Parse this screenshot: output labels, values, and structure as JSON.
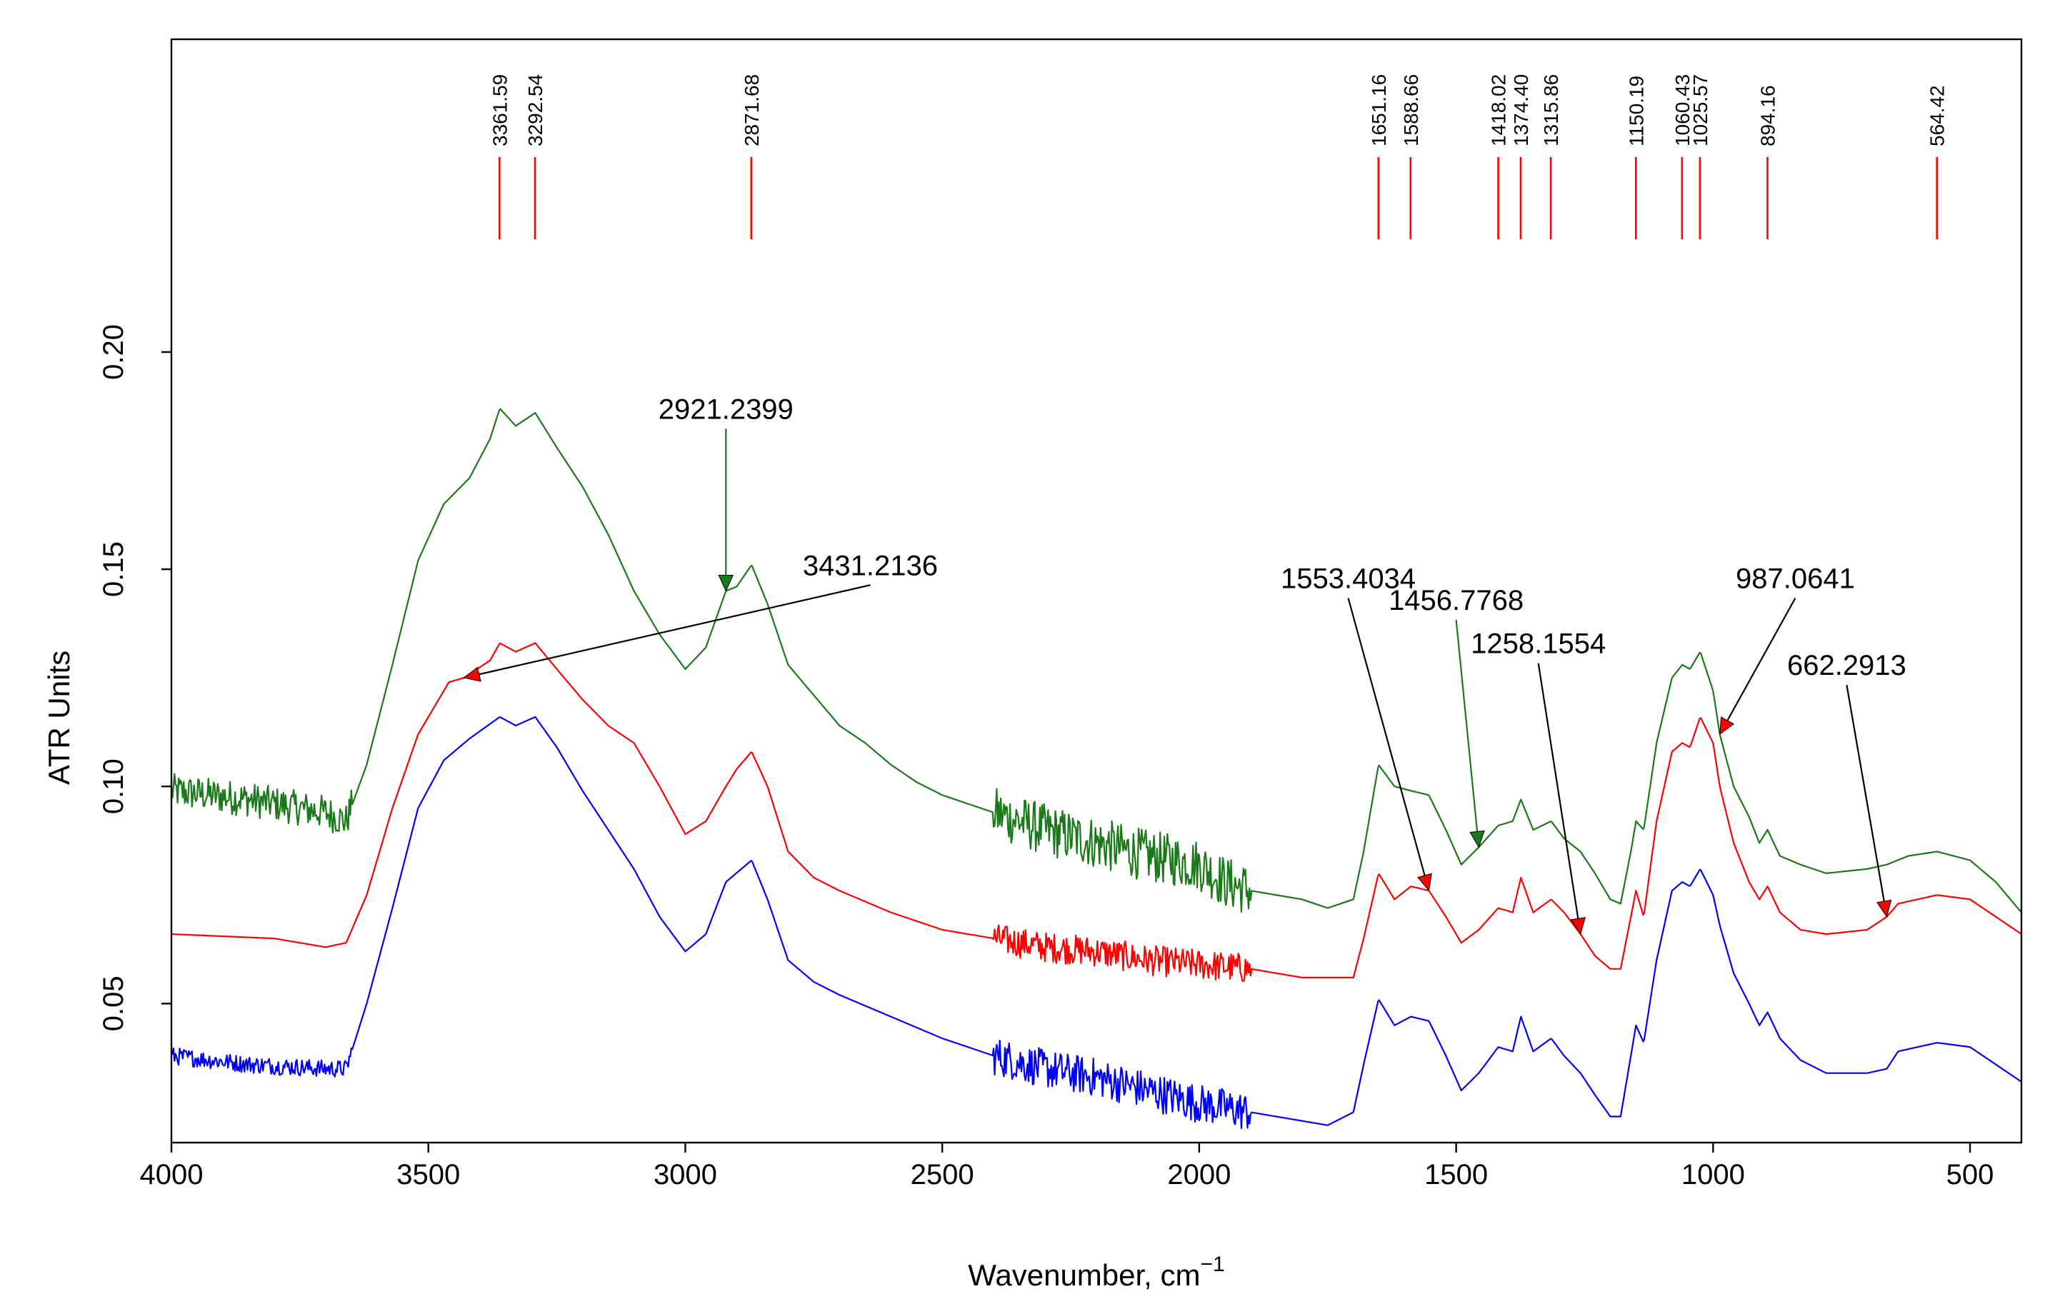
{
  "chart_data": {
    "type": "line",
    "title": "",
    "xlabel": "Wavenumber, cm",
    "xlabel_sup": "−1",
    "ylabel": "ATR Units",
    "xlim": [
      4000,
      400
    ],
    "ylim": [
      0.018,
      0.272
    ],
    "x_ticks": [
      4000,
      3500,
      3000,
      2500,
      2000,
      1500,
      1000,
      500
    ],
    "x_tick_labels": [
      "4000",
      "3500",
      "3000",
      "2500",
      "2000",
      "1500",
      "1000",
      "500"
    ],
    "y_ticks": [
      0.05,
      0.1,
      0.15,
      0.2
    ],
    "y_tick_labels": [
      "0.05",
      "0.10",
      "0.15",
      "0.20"
    ],
    "peak_markers": {
      "color": "#ff0000",
      "items": [
        {
          "x": 3361.59,
          "label": "3361.59"
        },
        {
          "x": 3292.54,
          "label": "3292.54"
        },
        {
          "x": 2871.68,
          "label": "2871.68"
        },
        {
          "x": 1651.16,
          "label": "1651.16"
        },
        {
          "x": 1588.66,
          "label": "1588.66"
        },
        {
          "x": 1418.02,
          "label": "1418.02"
        },
        {
          "x": 1374.4,
          "label": "1374.40"
        },
        {
          "x": 1315.86,
          "label": "1315.86"
        },
        {
          "x": 1150.19,
          "label": "1150.19"
        },
        {
          "x": 1060.43,
          "label": "1060.43"
        },
        {
          "x": 1025.57,
          "label": "1025.57"
        },
        {
          "x": 894.16,
          "label": "894.16"
        },
        {
          "x": 564.42,
          "label": "564.42"
        }
      ]
    },
    "series": [
      {
        "name": "green spectrum",
        "color": "#1a7a1a",
        "noise": [
          [
            4000,
            3650,
            0.004
          ],
          [
            2400,
            1900,
            0.006
          ]
        ],
        "points": [
          [
            4000,
            0.099
          ],
          [
            3850,
            0.097
          ],
          [
            3700,
            0.094
          ],
          [
            3660,
            0.092
          ],
          [
            3620,
            0.105
          ],
          [
            3570,
            0.128
          ],
          [
            3520,
            0.152
          ],
          [
            3470,
            0.165
          ],
          [
            3420,
            0.171
          ],
          [
            3380,
            0.18
          ],
          [
            3361,
            0.187
          ],
          [
            3330,
            0.183
          ],
          [
            3292,
            0.186
          ],
          [
            3250,
            0.178
          ],
          [
            3200,
            0.169
          ],
          [
            3150,
            0.158
          ],
          [
            3100,
            0.145
          ],
          [
            3050,
            0.135
          ],
          [
            3000,
            0.127
          ],
          [
            2960,
            0.132
          ],
          [
            2921,
            0.145
          ],
          [
            2900,
            0.146
          ],
          [
            2871,
            0.151
          ],
          [
            2840,
            0.142
          ],
          [
            2800,
            0.128
          ],
          [
            2750,
            0.121
          ],
          [
            2700,
            0.114
          ],
          [
            2650,
            0.11
          ],
          [
            2600,
            0.105
          ],
          [
            2550,
            0.101
          ],
          [
            2500,
            0.098
          ],
          [
            2400,
            0.094
          ],
          [
            2300,
            0.09
          ],
          [
            2200,
            0.087
          ],
          [
            2100,
            0.084
          ],
          [
            2000,
            0.082
          ],
          [
            1950,
            0.078
          ],
          [
            1900,
            0.076
          ],
          [
            1800,
            0.074
          ],
          [
            1750,
            0.072
          ],
          [
            1700,
            0.074
          ],
          [
            1680,
            0.085
          ],
          [
            1651,
            0.105
          ],
          [
            1620,
            0.1
          ],
          [
            1588,
            0.099
          ],
          [
            1553,
            0.098
          ],
          [
            1520,
            0.09
          ],
          [
            1490,
            0.082
          ],
          [
            1456,
            0.086
          ],
          [
            1418,
            0.091
          ],
          [
            1390,
            0.092
          ],
          [
            1374,
            0.097
          ],
          [
            1350,
            0.09
          ],
          [
            1315,
            0.092
          ],
          [
            1290,
            0.088
          ],
          [
            1258,
            0.085
          ],
          [
            1230,
            0.08
          ],
          [
            1200,
            0.074
          ],
          [
            1180,
            0.073
          ],
          [
            1160,
            0.085
          ],
          [
            1150,
            0.092
          ],
          [
            1135,
            0.09
          ],
          [
            1110,
            0.11
          ],
          [
            1080,
            0.125
          ],
          [
            1060,
            0.128
          ],
          [
            1045,
            0.127
          ],
          [
            1025,
            0.131
          ],
          [
            1000,
            0.122
          ],
          [
            987,
            0.112
          ],
          [
            960,
            0.1
          ],
          [
            930,
            0.093
          ],
          [
            910,
            0.087
          ],
          [
            894,
            0.09
          ],
          [
            870,
            0.084
          ],
          [
            830,
            0.082
          ],
          [
            780,
            0.08
          ],
          [
            700,
            0.081
          ],
          [
            662,
            0.082
          ],
          [
            620,
            0.084
          ],
          [
            564,
            0.085
          ],
          [
            500,
            0.083
          ],
          [
            450,
            0.078
          ],
          [
            400,
            0.071
          ]
        ]
      },
      {
        "name": "red spectrum",
        "color": "#ff0000",
        "noise": [
          [
            2400,
            1900,
            0.0035
          ]
        ],
        "points": [
          [
            4000,
            0.066
          ],
          [
            3800,
            0.065
          ],
          [
            3700,
            0.063
          ],
          [
            3660,
            0.064
          ],
          [
            3620,
            0.075
          ],
          [
            3570,
            0.095
          ],
          [
            3520,
            0.112
          ],
          [
            3460,
            0.124
          ],
          [
            3431,
            0.125
          ],
          [
            3380,
            0.129
          ],
          [
            3361,
            0.133
          ],
          [
            3330,
            0.131
          ],
          [
            3292,
            0.133
          ],
          [
            3250,
            0.127
          ],
          [
            3200,
            0.12
          ],
          [
            3150,
            0.114
          ],
          [
            3100,
            0.11
          ],
          [
            3050,
            0.1
          ],
          [
            3000,
            0.089
          ],
          [
            2960,
            0.092
          ],
          [
            2921,
            0.1
          ],
          [
            2900,
            0.104
          ],
          [
            2871,
            0.108
          ],
          [
            2840,
            0.1
          ],
          [
            2800,
            0.085
          ],
          [
            2750,
            0.079
          ],
          [
            2700,
            0.076
          ],
          [
            2600,
            0.071
          ],
          [
            2500,
            0.067
          ],
          [
            2400,
            0.065
          ],
          [
            2300,
            0.063
          ],
          [
            2200,
            0.062
          ],
          [
            2100,
            0.06
          ],
          [
            2000,
            0.059
          ],
          [
            1900,
            0.058
          ],
          [
            1800,
            0.056
          ],
          [
            1700,
            0.056
          ],
          [
            1680,
            0.065
          ],
          [
            1651,
            0.08
          ],
          [
            1620,
            0.074
          ],
          [
            1588,
            0.077
          ],
          [
            1553,
            0.076
          ],
          [
            1520,
            0.07
          ],
          [
            1490,
            0.064
          ],
          [
            1456,
            0.067
          ],
          [
            1418,
            0.072
          ],
          [
            1390,
            0.071
          ],
          [
            1374,
            0.079
          ],
          [
            1350,
            0.071
          ],
          [
            1315,
            0.074
          ],
          [
            1290,
            0.071
          ],
          [
            1258,
            0.066
          ],
          [
            1230,
            0.061
          ],
          [
            1200,
            0.058
          ],
          [
            1180,
            0.058
          ],
          [
            1160,
            0.07
          ],
          [
            1150,
            0.076
          ],
          [
            1135,
            0.07
          ],
          [
            1110,
            0.092
          ],
          [
            1080,
            0.108
          ],
          [
            1060,
            0.11
          ],
          [
            1045,
            0.109
          ],
          [
            1025,
            0.116
          ],
          [
            1000,
            0.11
          ],
          [
            987,
            0.1
          ],
          [
            960,
            0.087
          ],
          [
            930,
            0.078
          ],
          [
            910,
            0.074
          ],
          [
            894,
            0.077
          ],
          [
            870,
            0.071
          ],
          [
            830,
            0.067
          ],
          [
            780,
            0.066
          ],
          [
            700,
            0.067
          ],
          [
            662,
            0.07
          ],
          [
            640,
            0.073
          ],
          [
            564,
            0.075
          ],
          [
            500,
            0.074
          ],
          [
            450,
            0.07
          ],
          [
            400,
            0.066
          ]
        ]
      },
      {
        "name": "blue spectrum",
        "color": "#0000ff",
        "noise": [
          [
            4000,
            3650,
            0.002
          ],
          [
            2400,
            1900,
            0.0045
          ]
        ],
        "points": [
          [
            4000,
            0.038
          ],
          [
            3850,
            0.036
          ],
          [
            3700,
            0.035
          ],
          [
            3660,
            0.035
          ],
          [
            3620,
            0.05
          ],
          [
            3570,
            0.072
          ],
          [
            3520,
            0.095
          ],
          [
            3470,
            0.106
          ],
          [
            3420,
            0.111
          ],
          [
            3361,
            0.116
          ],
          [
            3330,
            0.114
          ],
          [
            3292,
            0.116
          ],
          [
            3250,
            0.109
          ],
          [
            3200,
            0.099
          ],
          [
            3150,
            0.09
          ],
          [
            3100,
            0.081
          ],
          [
            3050,
            0.07
          ],
          [
            3000,
            0.062
          ],
          [
            2960,
            0.066
          ],
          [
            2921,
            0.078
          ],
          [
            2871,
            0.083
          ],
          [
            2840,
            0.074
          ],
          [
            2800,
            0.06
          ],
          [
            2750,
            0.055
          ],
          [
            2700,
            0.052
          ],
          [
            2600,
            0.047
          ],
          [
            2500,
            0.042
          ],
          [
            2400,
            0.038
          ],
          [
            2300,
            0.035
          ],
          [
            2200,
            0.033
          ],
          [
            2100,
            0.03
          ],
          [
            2000,
            0.027
          ],
          [
            1900,
            0.025
          ],
          [
            1800,
            0.023
          ],
          [
            1750,
            0.022
          ],
          [
            1700,
            0.025
          ],
          [
            1680,
            0.036
          ],
          [
            1651,
            0.051
          ],
          [
            1620,
            0.045
          ],
          [
            1588,
            0.047
          ],
          [
            1553,
            0.046
          ],
          [
            1520,
            0.038
          ],
          [
            1490,
            0.03
          ],
          [
            1456,
            0.034
          ],
          [
            1418,
            0.04
          ],
          [
            1390,
            0.039
          ],
          [
            1374,
            0.047
          ],
          [
            1350,
            0.039
          ],
          [
            1315,
            0.042
          ],
          [
            1290,
            0.038
          ],
          [
            1258,
            0.034
          ],
          [
            1230,
            0.029
          ],
          [
            1200,
            0.024
          ],
          [
            1180,
            0.024
          ],
          [
            1160,
            0.038
          ],
          [
            1150,
            0.045
          ],
          [
            1135,
            0.041
          ],
          [
            1110,
            0.06
          ],
          [
            1080,
            0.076
          ],
          [
            1060,
            0.078
          ],
          [
            1045,
            0.077
          ],
          [
            1025,
            0.081
          ],
          [
            1000,
            0.075
          ],
          [
            987,
            0.068
          ],
          [
            960,
            0.057
          ],
          [
            930,
            0.05
          ],
          [
            910,
            0.045
          ],
          [
            894,
            0.048
          ],
          [
            870,
            0.042
          ],
          [
            830,
            0.037
          ],
          [
            780,
            0.034
          ],
          [
            700,
            0.034
          ],
          [
            662,
            0.035
          ],
          [
            640,
            0.039
          ],
          [
            564,
            0.041
          ],
          [
            500,
            0.04
          ],
          [
            450,
            0.036
          ],
          [
            400,
            0.032
          ]
        ]
      }
    ],
    "annotations": [
      {
        "label": "2921.2399",
        "target": [
          2921,
          0.145
        ],
        "label_pos": [
          2921,
          0.184
        ],
        "color": "#1a7a1a",
        "arrow_color": "#1a7a1a"
      },
      {
        "label": "3431.2136",
        "target": [
          3431,
          0.125
        ],
        "label_pos": [
          2640,
          0.148
        ],
        "color": "#000000",
        "arrow_color": "#ff0000"
      },
      {
        "label": "1553.4034",
        "target": [
          1553,
          0.076
        ],
        "label_pos": [
          1710,
          0.145
        ],
        "color": "#000000",
        "arrow_color": "#ff0000"
      },
      {
        "label": "1456.7768",
        "target": [
          1456,
          0.086
        ],
        "label_pos": [
          1500,
          0.14
        ],
        "color": "#1a7a1a",
        "arrow_color": "#1a7a1a"
      },
      {
        "label": "1258.1554",
        "target": [
          1258,
          0.066
        ],
        "label_pos": [
          1340,
          0.13
        ],
        "color": "#000000",
        "arrow_color": "#ff0000"
      },
      {
        "label": "987.0641",
        "target": [
          987,
          0.112
        ],
        "label_pos": [
          840,
          0.145
        ],
        "color": "#000000",
        "arrow_color": "#ff0000"
      },
      {
        "label": "662.2913",
        "target": [
          662,
          0.07
        ],
        "label_pos": [
          740,
          0.125
        ],
        "color": "#000000",
        "arrow_color": "#ff0000"
      }
    ]
  }
}
